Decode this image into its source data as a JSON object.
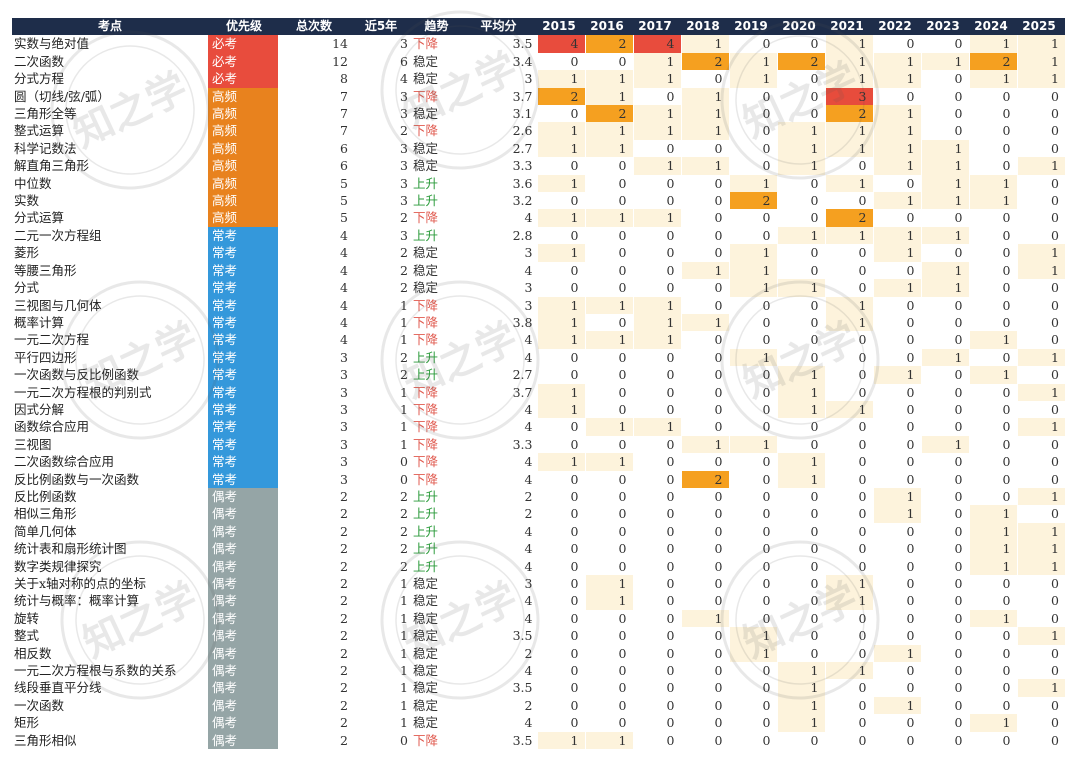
{
  "columns": [
    "考点",
    "优先级",
    "总次数",
    "近5年",
    "趋势",
    "平均分",
    "2015",
    "2016",
    "2017",
    "2018",
    "2019",
    "2020",
    "2021",
    "2022",
    "2023",
    "2024",
    "2025"
  ],
  "watermark": "知之学",
  "colors": {
    "header": "#1e2d4a",
    "必考": "#e84c3d",
    "高频": "#e8821e",
    "常考": "#3498db",
    "偶考": "#95a5a6",
    "up": "#2a9a3a",
    "down": "#e05a4f"
  },
  "rows": [
    {
      "name": "实数与绝对值",
      "priority": "必考",
      "total": "14",
      "recent": "3",
      "trend": "下降",
      "avg": "3.5",
      "years": [
        "4",
        "2",
        "4",
        "1",
        "0",
        "0",
        "1",
        "0",
        "0",
        "1",
        "1"
      ]
    },
    {
      "name": "二次函数",
      "priority": "必考",
      "total": "12",
      "recent": "6",
      "trend": "稳定",
      "avg": "3.4",
      "years": [
        "0",
        "0",
        "1",
        "2",
        "1",
        "2",
        "1",
        "1",
        "1",
        "2",
        "1"
      ]
    },
    {
      "name": "分式方程",
      "priority": "必考",
      "total": "8",
      "recent": "4",
      "trend": "稳定",
      "avg": "3",
      "years": [
        "1",
        "1",
        "1",
        "0",
        "1",
        "0",
        "1",
        "1",
        "0",
        "1",
        "1"
      ]
    },
    {
      "name": "圆（切线/弦/弧）",
      "priority": "高频",
      "total": "7",
      "recent": "3",
      "trend": "下降",
      "avg": "3.7",
      "years": [
        "2",
        "1",
        "0",
        "1",
        "0",
        "0",
        "3",
        "0",
        "0",
        "0",
        "0"
      ]
    },
    {
      "name": "三角形全等",
      "priority": "高频",
      "total": "7",
      "recent": "3",
      "trend": "稳定",
      "avg": "3.1",
      "years": [
        "0",
        "2",
        "1",
        "1",
        "0",
        "0",
        "2",
        "1",
        "0",
        "0",
        "0"
      ]
    },
    {
      "name": "整式运算",
      "priority": "高频",
      "total": "7",
      "recent": "2",
      "trend": "下降",
      "avg": "2.6",
      "years": [
        "1",
        "1",
        "1",
        "1",
        "0",
        "1",
        "1",
        "1",
        "0",
        "0",
        "0"
      ]
    },
    {
      "name": "科学记数法",
      "priority": "高频",
      "total": "6",
      "recent": "3",
      "trend": "稳定",
      "avg": "2.7",
      "years": [
        "1",
        "1",
        "0",
        "0",
        "0",
        "1",
        "1",
        "1",
        "1",
        "0",
        "0"
      ]
    },
    {
      "name": "解直角三角形",
      "priority": "高频",
      "total": "6",
      "recent": "3",
      "trend": "稳定",
      "avg": "3.3",
      "years": [
        "0",
        "0",
        "1",
        "1",
        "0",
        "1",
        "0",
        "1",
        "1",
        "0",
        "1"
      ]
    },
    {
      "name": "中位数",
      "priority": "高频",
      "total": "5",
      "recent": "3",
      "trend": "上升",
      "avg": "3.6",
      "years": [
        "1",
        "0",
        "0",
        "0",
        "1",
        "0",
        "1",
        "0",
        "1",
        "1",
        "0"
      ]
    },
    {
      "name": "实数",
      "priority": "高频",
      "total": "5",
      "recent": "3",
      "trend": "上升",
      "avg": "3.2",
      "years": [
        "0",
        "0",
        "0",
        "0",
        "2",
        "0",
        "0",
        "1",
        "1",
        "1",
        "0"
      ]
    },
    {
      "name": "分式运算",
      "priority": "高频",
      "total": "5",
      "recent": "2",
      "trend": "下降",
      "avg": "4",
      "years": [
        "1",
        "1",
        "1",
        "0",
        "0",
        "0",
        "2",
        "0",
        "0",
        "0",
        "0"
      ]
    },
    {
      "name": "二元一次方程组",
      "priority": "常考",
      "total": "4",
      "recent": "3",
      "trend": "上升",
      "avg": "2.8",
      "years": [
        "0",
        "0",
        "0",
        "0",
        "0",
        "1",
        "1",
        "1",
        "1",
        "0",
        "0"
      ]
    },
    {
      "name": "菱形",
      "priority": "常考",
      "total": "4",
      "recent": "2",
      "trend": "稳定",
      "avg": "3",
      "years": [
        "1",
        "0",
        "0",
        "0",
        "1",
        "0",
        "0",
        "1",
        "0",
        "0",
        "1"
      ]
    },
    {
      "name": "等腰三角形",
      "priority": "常考",
      "total": "4",
      "recent": "2",
      "trend": "稳定",
      "avg": "4",
      "years": [
        "0",
        "0",
        "0",
        "1",
        "1",
        "0",
        "0",
        "0",
        "1",
        "0",
        "1"
      ]
    },
    {
      "name": "分式",
      "priority": "常考",
      "total": "4",
      "recent": "2",
      "trend": "稳定",
      "avg": "3",
      "years": [
        "0",
        "0",
        "0",
        "0",
        "1",
        "1",
        "0",
        "1",
        "1",
        "0",
        "0"
      ]
    },
    {
      "name": "三视图与几何体",
      "priority": "常考",
      "total": "4",
      "recent": "1",
      "trend": "下降",
      "avg": "3",
      "years": [
        "1",
        "1",
        "1",
        "0",
        "0",
        "0",
        "1",
        "0",
        "0",
        "0",
        "0"
      ]
    },
    {
      "name": "概率计算",
      "priority": "常考",
      "total": "4",
      "recent": "1",
      "trend": "下降",
      "avg": "3.8",
      "years": [
        "1",
        "0",
        "1",
        "1",
        "0",
        "0",
        "1",
        "0",
        "0",
        "0",
        "0"
      ]
    },
    {
      "name": "一元二次方程",
      "priority": "常考",
      "total": "4",
      "recent": "1",
      "trend": "下降",
      "avg": "4",
      "years": [
        "1",
        "1",
        "1",
        "0",
        "0",
        "0",
        "0",
        "0",
        "0",
        "1",
        "0"
      ]
    },
    {
      "name": "平行四边形",
      "priority": "常考",
      "total": "3",
      "recent": "2",
      "trend": "上升",
      "avg": "4",
      "years": [
        "0",
        "0",
        "0",
        "0",
        "1",
        "0",
        "0",
        "0",
        "1",
        "0",
        "1"
      ]
    },
    {
      "name": "一次函数与反比例函数",
      "priority": "常考",
      "total": "3",
      "recent": "2",
      "trend": "上升",
      "avg": "2.7",
      "years": [
        "0",
        "0",
        "0",
        "0",
        "0",
        "1",
        "0",
        "1",
        "0",
        "1",
        "0"
      ]
    },
    {
      "name": "一元二次方程根的判别式",
      "priority": "常考",
      "total": "3",
      "recent": "1",
      "trend": "下降",
      "avg": "3.7",
      "years": [
        "1",
        "0",
        "0",
        "0",
        "0",
        "1",
        "0",
        "0",
        "0",
        "0",
        "1"
      ]
    },
    {
      "name": "因式分解",
      "priority": "常考",
      "total": "3",
      "recent": "1",
      "trend": "下降",
      "avg": "4",
      "years": [
        "1",
        "0",
        "0",
        "0",
        "0",
        "1",
        "1",
        "0",
        "0",
        "0",
        "0"
      ]
    },
    {
      "name": "函数综合应用",
      "priority": "常考",
      "total": "3",
      "recent": "1",
      "trend": "下降",
      "avg": "4",
      "years": [
        "0",
        "1",
        "1",
        "0",
        "0",
        "0",
        "0",
        "0",
        "0",
        "0",
        "1"
      ]
    },
    {
      "name": "三视图",
      "priority": "常考",
      "total": "3",
      "recent": "1",
      "trend": "下降",
      "avg": "3.3",
      "years": [
        "0",
        "0",
        "0",
        "1",
        "1",
        "0",
        "0",
        "0",
        "1",
        "0",
        "0"
      ]
    },
    {
      "name": "二次函数综合应用",
      "priority": "常考",
      "total": "3",
      "recent": "0",
      "trend": "下降",
      "avg": "4",
      "years": [
        "1",
        "1",
        "0",
        "0",
        "0",
        "1",
        "0",
        "0",
        "0",
        "0",
        "0"
      ]
    },
    {
      "name": "反比例函数与一次函数",
      "priority": "常考",
      "total": "3",
      "recent": "0",
      "trend": "下降",
      "avg": "4",
      "years": [
        "0",
        "0",
        "0",
        "2",
        "0",
        "1",
        "0",
        "0",
        "0",
        "0",
        "0"
      ]
    },
    {
      "name": "反比例函数",
      "priority": "偶考",
      "total": "2",
      "recent": "2",
      "trend": "上升",
      "avg": "2",
      "years": [
        "0",
        "0",
        "0",
        "0",
        "0",
        "0",
        "0",
        "1",
        "0",
        "0",
        "1"
      ]
    },
    {
      "name": "相似三角形",
      "priority": "偶考",
      "total": "2",
      "recent": "2",
      "trend": "上升",
      "avg": "2",
      "years": [
        "0",
        "0",
        "0",
        "0",
        "0",
        "0",
        "0",
        "1",
        "0",
        "1",
        "0"
      ]
    },
    {
      "name": "简单几何体",
      "priority": "偶考",
      "total": "2",
      "recent": "2",
      "trend": "上升",
      "avg": "4",
      "years": [
        "0",
        "0",
        "0",
        "0",
        "0",
        "0",
        "0",
        "0",
        "0",
        "1",
        "1"
      ]
    },
    {
      "name": "统计表和扇形统计图",
      "priority": "偶考",
      "total": "2",
      "recent": "2",
      "trend": "上升",
      "avg": "4",
      "years": [
        "0",
        "0",
        "0",
        "0",
        "0",
        "0",
        "0",
        "0",
        "0",
        "1",
        "1"
      ]
    },
    {
      "name": "数字类规律探究",
      "priority": "偶考",
      "total": "2",
      "recent": "2",
      "trend": "上升",
      "avg": "4",
      "years": [
        "0",
        "0",
        "0",
        "0",
        "0",
        "0",
        "0",
        "0",
        "0",
        "1",
        "1"
      ]
    },
    {
      "name": "关于x轴对称的点的坐标",
      "priority": "偶考",
      "total": "2",
      "recent": "1",
      "trend": "稳定",
      "avg": "3",
      "years": [
        "0",
        "1",
        "0",
        "0",
        "0",
        "0",
        "1",
        "0",
        "0",
        "0",
        "0"
      ]
    },
    {
      "name": "统计与概率：概率计算",
      "priority": "偶考",
      "total": "2",
      "recent": "1",
      "trend": "稳定",
      "avg": "4",
      "years": [
        "0",
        "1",
        "0",
        "0",
        "0",
        "0",
        "1",
        "0",
        "0",
        "0",
        "0"
      ]
    },
    {
      "name": "旋转",
      "priority": "偶考",
      "total": "2",
      "recent": "1",
      "trend": "稳定",
      "avg": "4",
      "years": [
        "0",
        "0",
        "0",
        "1",
        "0",
        "0",
        "0",
        "0",
        "0",
        "1",
        "0"
      ]
    },
    {
      "name": "整式",
      "priority": "偶考",
      "total": "2",
      "recent": "1",
      "trend": "稳定",
      "avg": "3.5",
      "years": [
        "0",
        "0",
        "0",
        "0",
        "1",
        "0",
        "0",
        "0",
        "0",
        "0",
        "1"
      ]
    },
    {
      "name": "相反数",
      "priority": "偶考",
      "total": "2",
      "recent": "1",
      "trend": "稳定",
      "avg": "2",
      "years": [
        "0",
        "0",
        "0",
        "0",
        "1",
        "0",
        "0",
        "1",
        "0",
        "0",
        "0"
      ]
    },
    {
      "name": "一元二次方程根与系数的关系",
      "priority": "偶考",
      "total": "2",
      "recent": "1",
      "trend": "稳定",
      "avg": "4",
      "years": [
        "0",
        "0",
        "0",
        "0",
        "0",
        "1",
        "1",
        "0",
        "0",
        "0",
        "0"
      ]
    },
    {
      "name": "线段垂直平分线",
      "priority": "偶考",
      "total": "2",
      "recent": "1",
      "trend": "稳定",
      "avg": "3.5",
      "years": [
        "0",
        "0",
        "0",
        "0",
        "0",
        "1",
        "0",
        "0",
        "0",
        "0",
        "1"
      ]
    },
    {
      "name": "一次函数",
      "priority": "偶考",
      "total": "2",
      "recent": "1",
      "trend": "稳定",
      "avg": "2",
      "years": [
        "0",
        "0",
        "0",
        "0",
        "0",
        "1",
        "0",
        "1",
        "0",
        "0",
        "0"
      ]
    },
    {
      "name": "矩形",
      "priority": "偶考",
      "total": "2",
      "recent": "1",
      "trend": "稳定",
      "avg": "4",
      "years": [
        "0",
        "0",
        "0",
        "0",
        "0",
        "1",
        "0",
        "0",
        "0",
        "1",
        "0"
      ]
    },
    {
      "name": "三角形相似",
      "priority": "偶考",
      "total": "2",
      "recent": "0",
      "trend": "下降",
      "avg": "3.5",
      "years": [
        "1",
        "1",
        "0",
        "0",
        "0",
        "0",
        "0",
        "0",
        "0",
        "0",
        "0"
      ]
    }
  ]
}
